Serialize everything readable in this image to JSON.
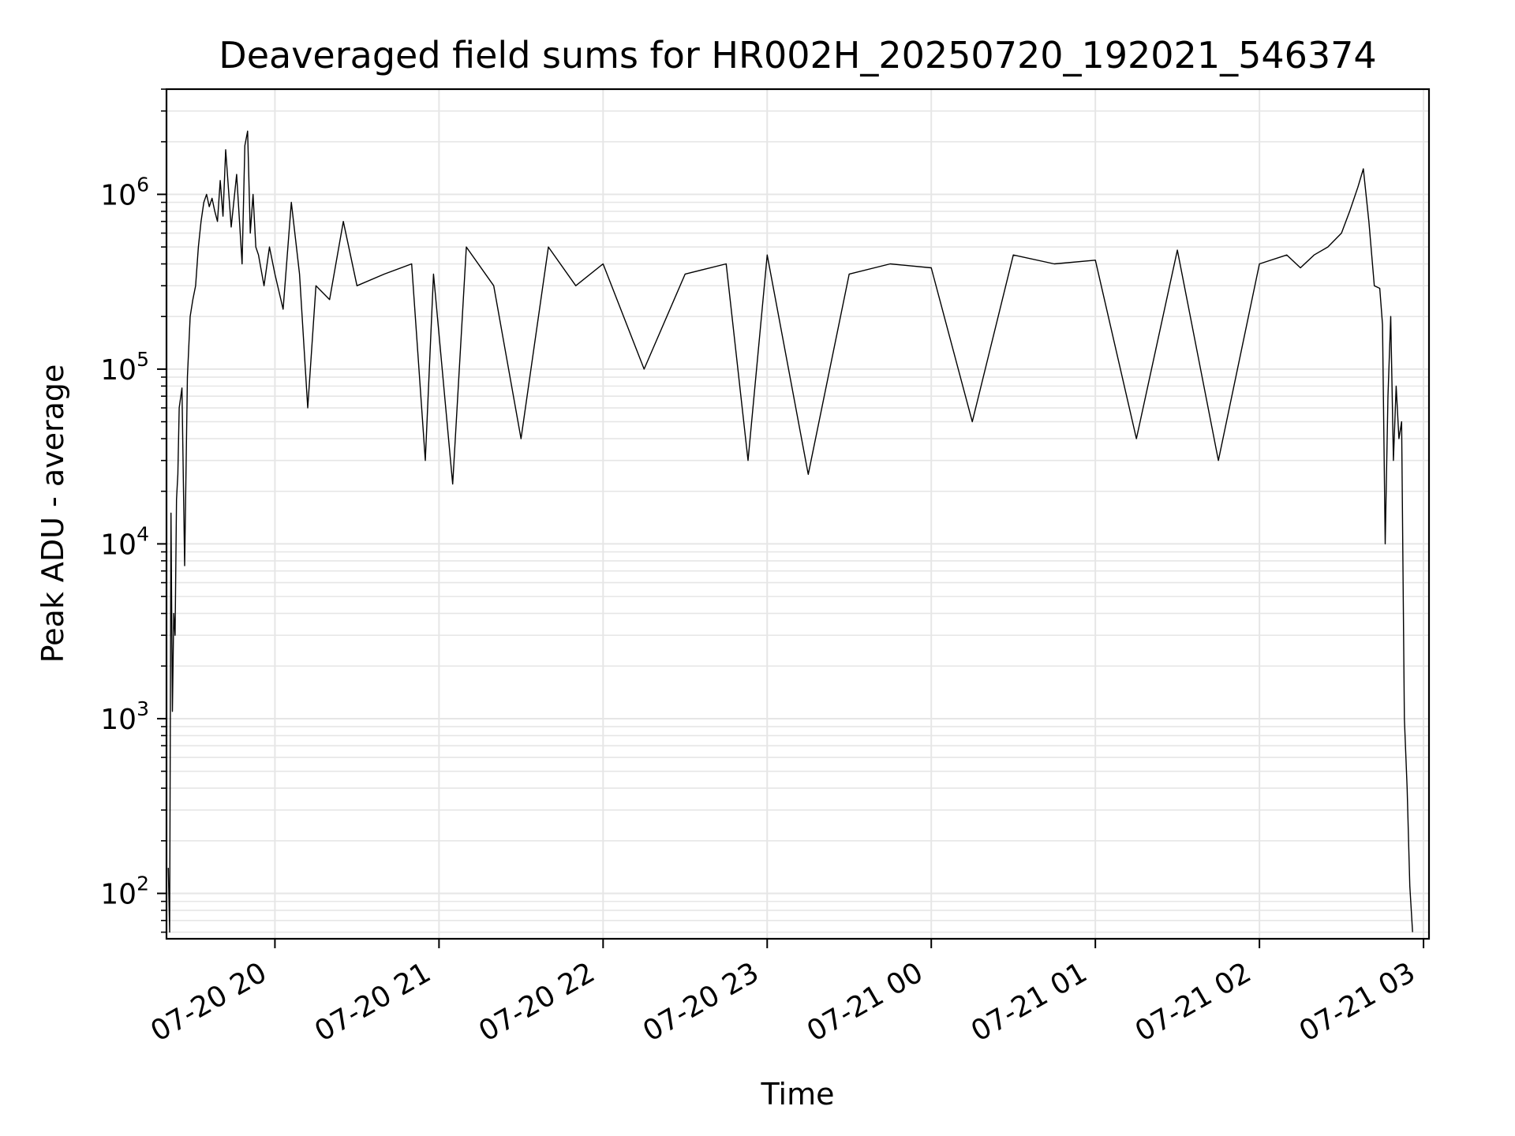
{
  "chart_data": {
    "type": "line",
    "title": "Deaveraged field sums for HR002H_20250720_192021_546374",
    "xlabel": "Time",
    "ylabel": "Peak ADU - average",
    "yscale": "log",
    "ylim": [
      55,
      4000000
    ],
    "xlim": [
      "2025-07-20T19:20:21",
      "2025-07-21T03:02:00"
    ],
    "grid": true,
    "legend": "none",
    "line_color": "#000000",
    "x_ticks": [
      {
        "x": "2025-07-20T20:00:00",
        "label": "07-20 20"
      },
      {
        "x": "2025-07-20T21:00:00",
        "label": "07-20 21"
      },
      {
        "x": "2025-07-20T22:00:00",
        "label": "07-20 22"
      },
      {
        "x": "2025-07-20T23:00:00",
        "label": "07-20 23"
      },
      {
        "x": "2025-07-21T00:00:00",
        "label": "07-21 00"
      },
      {
        "x": "2025-07-21T01:00:00",
        "label": "07-21 01"
      },
      {
        "x": "2025-07-21T02:00:00",
        "label": "07-21 02"
      },
      {
        "x": "2025-07-21T03:00:00",
        "label": "07-21 03"
      }
    ],
    "y_ticks": [
      {
        "exp": "2",
        "base": "10",
        "value": 100
      },
      {
        "exp": "3",
        "base": "10",
        "value": 1000
      },
      {
        "exp": "4",
        "base": "10",
        "value": 10000
      },
      {
        "exp": "5",
        "base": "10",
        "value": 100000
      },
      {
        "exp": "6",
        "base": "10",
        "value": 1000000
      }
    ],
    "series": [
      {
        "x": [
          "2025-07-20T19:21:00",
          "2025-07-20T19:21:30",
          "2025-07-20T19:22:00",
          "2025-07-20T19:22:30",
          "2025-07-20T19:23:00",
          "2025-07-20T19:23:30",
          "2025-07-20T19:24:00",
          "2025-07-20T19:24:30",
          "2025-07-20T19:25:00",
          "2025-07-20T19:26:00",
          "2025-07-20T19:27:00",
          "2025-07-20T19:28:00",
          "2025-07-20T19:29:00",
          "2025-07-20T19:30:00",
          "2025-07-20T19:31:00",
          "2025-07-20T19:32:00",
          "2025-07-20T19:33:00",
          "2025-07-20T19:34:00",
          "2025-07-20T19:35:00",
          "2025-07-20T19:36:00",
          "2025-07-20T19:37:00",
          "2025-07-20T19:38:00",
          "2025-07-20T19:39:00",
          "2025-07-20T19:40:00",
          "2025-07-20T19:41:00",
          "2025-07-20T19:42:00",
          "2025-07-20T19:44:00",
          "2025-07-20T19:46:00",
          "2025-07-20T19:48:00",
          "2025-07-20T19:49:00",
          "2025-07-20T19:50:00",
          "2025-07-20T19:51:00",
          "2025-07-20T19:52:00",
          "2025-07-20T19:53:00",
          "2025-07-20T19:54:00",
          "2025-07-20T19:56:00",
          "2025-07-20T19:58:00",
          "2025-07-20T20:00:00",
          "2025-07-20T20:03:00",
          "2025-07-20T20:06:00",
          "2025-07-20T20:09:00",
          "2025-07-20T20:12:00",
          "2025-07-20T20:15:00",
          "2025-07-20T20:20:00",
          "2025-07-20T20:25:00",
          "2025-07-20T20:30:00",
          "2025-07-20T20:40:00",
          "2025-07-20T20:50:00",
          "2025-07-20T20:55:00",
          "2025-07-20T20:58:00",
          "2025-07-20T21:05:00",
          "2025-07-20T21:10:00",
          "2025-07-20T21:20:00",
          "2025-07-20T21:30:00",
          "2025-07-20T21:40:00",
          "2025-07-20T21:50:00",
          "2025-07-20T22:00:00",
          "2025-07-20T22:15:00",
          "2025-07-20T22:30:00",
          "2025-07-20T22:45:00",
          "2025-07-20T22:53:00",
          "2025-07-20T23:00:00",
          "2025-07-20T23:15:00",
          "2025-07-20T23:30:00",
          "2025-07-20T23:45:00",
          "2025-07-21T00:00:00",
          "2025-07-21T00:15:00",
          "2025-07-21T00:30:00",
          "2025-07-21T00:45:00",
          "2025-07-21T01:00:00",
          "2025-07-21T01:15:00",
          "2025-07-21T01:30:00",
          "2025-07-21T01:45:00",
          "2025-07-21T02:00:00",
          "2025-07-21T02:10:00",
          "2025-07-21T02:15:00",
          "2025-07-21T02:20:00",
          "2025-07-21T02:25:00",
          "2025-07-21T02:30:00",
          "2025-07-21T02:33:00",
          "2025-07-21T02:36:00",
          "2025-07-21T02:38:00",
          "2025-07-21T02:40:00",
          "2025-07-21T02:42:00",
          "2025-07-21T02:44:00",
          "2025-07-21T02:45:00",
          "2025-07-21T02:46:00",
          "2025-07-21T02:47:00",
          "2025-07-21T02:48:00",
          "2025-07-21T02:49:00",
          "2025-07-21T02:50:00",
          "2025-07-21T02:51:00",
          "2025-07-21T02:52:00",
          "2025-07-21T02:53:00",
          "2025-07-21T02:54:00",
          "2025-07-21T02:55:00",
          "2025-07-21T02:56:00"
        ],
        "y": [
          140,
          60,
          15000,
          1100,
          4000,
          3000,
          18000,
          25000,
          60000,
          78000,
          7500,
          90000,
          200000,
          250000,
          300000,
          500000,
          700000,
          900000,
          1000000,
          850000,
          950000,
          800000,
          700000,
          1200000,
          750000,
          1800000,
          650000,
          1300000,
          400000,
          1900000,
          2300000,
          600000,
          1000000,
          500000,
          450000,
          300000,
          500000,
          350000,
          220000,
          900000,
          350000,
          60000,
          300000,
          250000,
          700000,
          300000,
          350000,
          400000,
          30000,
          350000,
          22000,
          500000,
          300000,
          40000,
          500000,
          300000,
          400000,
          100000,
          350000,
          400000,
          30000,
          450000,
          25000,
          350000,
          400000,
          380000,
          50000,
          450000,
          400000,
          420000,
          40000,
          480000,
          30000,
          400000,
          450000,
          380000,
          450000,
          500000,
          600000,
          800000,
          1100000,
          1400000,
          700000,
          300000,
          290000,
          180000,
          10000,
          70000,
          200000,
          30000,
          80000,
          40000,
          50000,
          1000,
          400,
          110,
          60
        ]
      }
    ]
  }
}
